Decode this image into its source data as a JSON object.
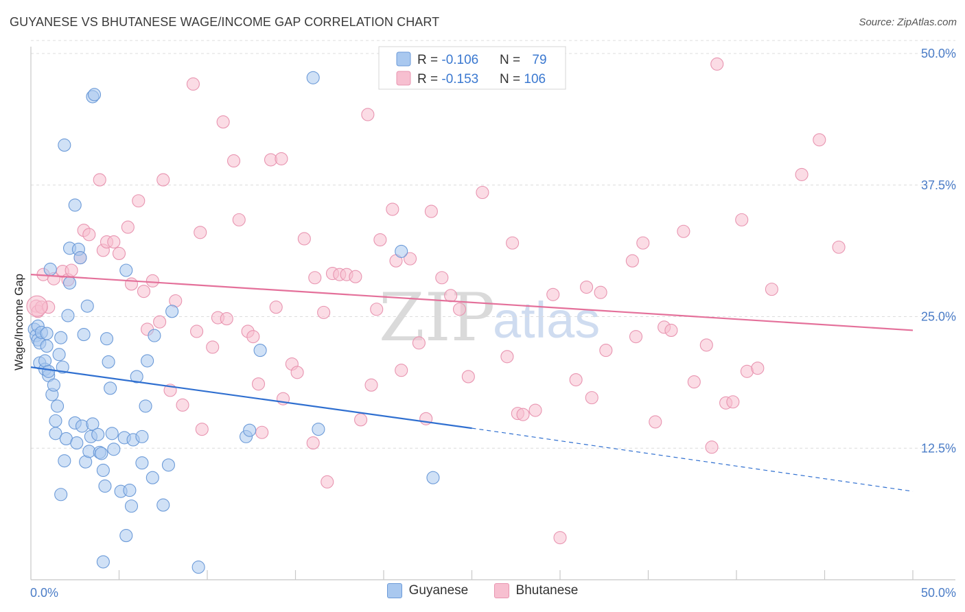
{
  "header": {
    "title": "GUYANESE VS BHUTANESE WAGE/INCOME GAP CORRELATION CHART",
    "source": "Source: ZipAtlas.com"
  },
  "watermark": {
    "zip": "ZIP",
    "atlas": "atlas"
  },
  "colors": {
    "guyanese_fill": "#a9c8ef",
    "guyanese_stroke": "#6b9ad8",
    "guyanese_line": "#2f6fd0",
    "bhutanese_fill": "#f7bfd0",
    "bhutanese_stroke": "#e894b0",
    "bhutanese_line": "#e4709a",
    "tick_text": "#4a7cc7",
    "grid": "#dcdcdc"
  },
  "legend": {
    "rows": [
      {
        "r_label": "R = ",
        "r_value": "-0.106",
        "n_label": "N = ",
        "n_value": "79"
      },
      {
        "r_label": "R = ",
        "r_value": "-0.153",
        "n_label": "N = ",
        "n_value": "106"
      }
    ]
  },
  "bottom_legend": {
    "items": [
      "Guyanese",
      "Bhutanese"
    ]
  },
  "chart_data": {
    "type": "scatter",
    "title": "GUYANESE VS BHUTANESE WAGE/INCOME GAP CORRELATION CHART",
    "xlabel": "",
    "ylabel": "Wage/Income Gap",
    "xlim": [
      0,
      50
    ],
    "ylim": [
      0,
      50
    ],
    "x_tick_labels": [
      "0.0%",
      "50.0%"
    ],
    "y_ticks": [
      12.5,
      25.0,
      37.5,
      50.0
    ],
    "y_tick_labels": [
      "12.5%",
      "25.0%",
      "37.5%",
      "50.0%"
    ],
    "series": [
      {
        "name": "Guyanese",
        "r": -0.106,
        "n": 79,
        "trend": {
          "x0": 0,
          "y0": 20.2,
          "x1": 25,
          "y1": 14.4,
          "dash_x1": 50,
          "dash_y1": 8.4
        },
        "points": [
          [
            0.2,
            23.8
          ],
          [
            0.3,
            23.2
          ],
          [
            0.4,
            22.8
          ],
          [
            0.5,
            22.5
          ],
          [
            0.4,
            24.1
          ],
          [
            0.5,
            20.6
          ],
          [
            0.6,
            23.5
          ],
          [
            0.8,
            20.0
          ],
          [
            0.8,
            20.8
          ],
          [
            0.9,
            22.2
          ],
          [
            0.9,
            23.4
          ],
          [
            1.0,
            19.4
          ],
          [
            1.0,
            19.8
          ],
          [
            1.1,
            29.5
          ],
          [
            1.2,
            17.6
          ],
          [
            1.3,
            18.5
          ],
          [
            1.4,
            15.1
          ],
          [
            1.4,
            13.9
          ],
          [
            1.5,
            16.5
          ],
          [
            1.6,
            21.4
          ],
          [
            1.7,
            23.0
          ],
          [
            1.8,
            20.2
          ],
          [
            1.9,
            41.3
          ],
          [
            1.9,
            11.3
          ],
          [
            2.0,
            13.4
          ],
          [
            2.1,
            25.1
          ],
          [
            2.2,
            28.2
          ],
          [
            2.2,
            31.5
          ],
          [
            2.5,
            35.6
          ],
          [
            2.5,
            14.9
          ],
          [
            2.6,
            13.0
          ],
          [
            2.7,
            31.4
          ],
          [
            2.8,
            30.6
          ],
          [
            2.9,
            14.6
          ],
          [
            3.0,
            23.3
          ],
          [
            3.1,
            11.2
          ],
          [
            3.2,
            26.0
          ],
          [
            3.3,
            12.2
          ],
          [
            3.4,
            13.6
          ],
          [
            3.5,
            14.8
          ],
          [
            3.5,
            45.9
          ],
          [
            3.6,
            46.1
          ],
          [
            3.8,
            13.8
          ],
          [
            3.9,
            12.1
          ],
          [
            4.0,
            12.0
          ],
          [
            4.1,
            10.4
          ],
          [
            4.2,
            8.9
          ],
          [
            4.3,
            22.9
          ],
          [
            4.4,
            20.7
          ],
          [
            4.5,
            18.2
          ],
          [
            4.6,
            13.9
          ],
          [
            4.7,
            12.4
          ],
          [
            5.1,
            8.4
          ],
          [
            5.3,
            13.5
          ],
          [
            5.4,
            29.4
          ],
          [
            5.4,
            4.2
          ],
          [
            5.6,
            8.5
          ],
          [
            5.7,
            7.0
          ],
          [
            5.8,
            13.3
          ],
          [
            6.0,
            19.3
          ],
          [
            6.3,
            11.1
          ],
          [
            6.3,
            13.6
          ],
          [
            6.5,
            16.5
          ],
          [
            6.6,
            20.8
          ],
          [
            6.9,
            9.7
          ],
          [
            7.0,
            23.2
          ],
          [
            7.5,
            7.1
          ],
          [
            7.8,
            10.9
          ],
          [
            8.0,
            25.5
          ],
          [
            9.5,
            1.2
          ],
          [
            12.2,
            13.6
          ],
          [
            12.4,
            14.2
          ],
          [
            13.0,
            21.8
          ],
          [
            16.0,
            47.7
          ],
          [
            16.3,
            14.3
          ],
          [
            21.0,
            31.2
          ],
          [
            22.8,
            9.7
          ],
          [
            1.7,
            8.1
          ],
          [
            4.1,
            1.7
          ]
        ]
      },
      {
        "name": "Bhutanese",
        "r": -0.153,
        "n": 106,
        "trend": {
          "x0": 0,
          "y0": 29.0,
          "x1": 50,
          "y1": 23.7
        },
        "points": [
          [
            0.3,
            26.0
          ],
          [
            0.4,
            25.5
          ],
          [
            0.6,
            25.9
          ],
          [
            0.7,
            29.0
          ],
          [
            1.0,
            25.9
          ],
          [
            1.3,
            28.6
          ],
          [
            1.8,
            29.3
          ],
          [
            2.1,
            28.5
          ],
          [
            2.3,
            29.4
          ],
          [
            2.8,
            30.6
          ],
          [
            3.0,
            33.2
          ],
          [
            3.3,
            32.8
          ],
          [
            3.9,
            38.0
          ],
          [
            4.1,
            31.3
          ],
          [
            4.3,
            32.1
          ],
          [
            4.7,
            32.1
          ],
          [
            5.0,
            31.0
          ],
          [
            5.5,
            33.5
          ],
          [
            5.7,
            28.1
          ],
          [
            6.1,
            36.0
          ],
          [
            6.4,
            27.4
          ],
          [
            6.6,
            23.8
          ],
          [
            6.9,
            28.4
          ],
          [
            7.3,
            24.5
          ],
          [
            7.5,
            38.0
          ],
          [
            7.9,
            18.0
          ],
          [
            8.2,
            26.5
          ],
          [
            8.6,
            16.6
          ],
          [
            9.2,
            47.1
          ],
          [
            9.4,
            23.6
          ],
          [
            9.6,
            33.0
          ],
          [
            9.7,
            14.3
          ],
          [
            10.3,
            22.1
          ],
          [
            10.6,
            24.9
          ],
          [
            10.9,
            43.5
          ],
          [
            11.1,
            24.8
          ],
          [
            11.5,
            39.8
          ],
          [
            11.8,
            34.2
          ],
          [
            12.3,
            23.6
          ],
          [
            12.6,
            23.1
          ],
          [
            12.9,
            18.6
          ],
          [
            13.1,
            14.0
          ],
          [
            13.6,
            39.9
          ],
          [
            14.2,
            40.0
          ],
          [
            13.9,
            25.9
          ],
          [
            14.3,
            17.2
          ],
          [
            14.8,
            20.5
          ],
          [
            15.1,
            19.7
          ],
          [
            15.5,
            32.4
          ],
          [
            16.0,
            13.0
          ],
          [
            16.1,
            28.7
          ],
          [
            16.6,
            25.4
          ],
          [
            16.8,
            9.3
          ],
          [
            17.1,
            29.1
          ],
          [
            17.5,
            29.0
          ],
          [
            17.9,
            29.0
          ],
          [
            18.4,
            28.8
          ],
          [
            18.7,
            15.2
          ],
          [
            19.1,
            44.2
          ],
          [
            19.3,
            18.5
          ],
          [
            19.6,
            25.7
          ],
          [
            19.8,
            32.3
          ],
          [
            20.5,
            35.2
          ],
          [
            20.7,
            30.3
          ],
          [
            21.0,
            19.9
          ],
          [
            21.5,
            30.5
          ],
          [
            22.0,
            22.5
          ],
          [
            22.4,
            15.3
          ],
          [
            22.7,
            35.0
          ],
          [
            23.3,
            28.7
          ],
          [
            23.8,
            27.0
          ],
          [
            24.3,
            25.7
          ],
          [
            24.8,
            19.3
          ],
          [
            25.6,
            36.8
          ],
          [
            27.0,
            21.2
          ],
          [
            27.3,
            32.0
          ],
          [
            27.6,
            15.8
          ],
          [
            27.9,
            15.7
          ],
          [
            28.6,
            16.1
          ],
          [
            29.6,
            27.1
          ],
          [
            30.0,
            4.0
          ],
          [
            30.9,
            19.0
          ],
          [
            31.5,
            27.8
          ],
          [
            31.8,
            17.3
          ],
          [
            32.3,
            27.3
          ],
          [
            32.6,
            21.8
          ],
          [
            34.1,
            30.3
          ],
          [
            34.3,
            23.1
          ],
          [
            34.7,
            32.0
          ],
          [
            35.4,
            15.0
          ],
          [
            35.9,
            24.0
          ],
          [
            36.3,
            23.7
          ],
          [
            37.0,
            33.1
          ],
          [
            37.6,
            18.8
          ],
          [
            38.3,
            22.3
          ],
          [
            38.6,
            12.6
          ],
          [
            38.9,
            49.0
          ],
          [
            39.4,
            16.8
          ],
          [
            39.8,
            16.9
          ],
          [
            40.3,
            34.2
          ],
          [
            40.6,
            19.8
          ],
          [
            41.2,
            20.1
          ],
          [
            42.0,
            27.6
          ],
          [
            43.7,
            38.5
          ],
          [
            44.7,
            41.8
          ],
          [
            45.8,
            31.6
          ]
        ]
      }
    ]
  }
}
